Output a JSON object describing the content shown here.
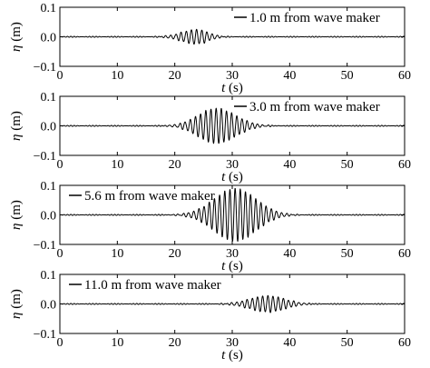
{
  "chart_data": [
    {
      "type": "line",
      "legend": "1.0 m from wave maker",
      "legend_position": "top-right",
      "xlabel_var": "t",
      "xlabel_unit": " (s)",
      "ylabel_var": "η",
      "ylabel_unit": " (m)",
      "xlim": [
        0,
        60
      ],
      "ylim": [
        -0.1,
        0.1
      ],
      "xticks": [
        "0",
        "10",
        "20",
        "30",
        "40",
        "50",
        "60"
      ],
      "yticks": [
        "0.1",
        "0.0",
        "−0.1"
      ],
      "packet": {
        "peak_time": 23.8,
        "peak_amplitude": 0.025,
        "period": 0.9,
        "onset": 17,
        "end": 29
      }
    },
    {
      "type": "line",
      "legend": "3.0 m from wave maker",
      "legend_position": "top-right",
      "xlabel_var": "t",
      "xlabel_unit": " (s)",
      "ylabel_var": "η",
      "ylabel_unit": " (m)",
      "xlim": [
        0,
        60
      ],
      "ylim": [
        -0.1,
        0.1
      ],
      "xticks": [
        "0",
        "10",
        "20",
        "30",
        "40",
        "50",
        "60"
      ],
      "yticks": [
        "0.1",
        "0.0",
        "−0.1"
      ],
      "packet": {
        "peak_time": 27.2,
        "peak_amplitude": 0.06,
        "period": 0.9,
        "onset": 19,
        "end": 36
      }
    },
    {
      "type": "line",
      "legend": "5.6 m from wave maker",
      "legend_position": "top-left",
      "xlabel_var": "t",
      "xlabel_unit": " (s)",
      "ylabel_var": "η",
      "ylabel_unit": " (m)",
      "xlim": [
        0,
        60
      ],
      "ylim": [
        -0.1,
        0.1
      ],
      "xticks": [
        "0",
        "10",
        "20",
        "30",
        "40",
        "50",
        "60"
      ],
      "yticks": [
        "0.1",
        "0.0",
        "−0.1"
      ],
      "packet": {
        "peak_time": 30.5,
        "peak_amplitude": 0.09,
        "period": 0.9,
        "onset": 21,
        "end": 40
      }
    },
    {
      "type": "line",
      "legend": "11.0 m from wave maker",
      "legend_position": "top-left",
      "xlabel_var": "t",
      "xlabel_unit": " (s)",
      "ylabel_var": "η",
      "ylabel_unit": " (m)",
      "xlim": [
        0,
        60
      ],
      "ylim": [
        -0.1,
        0.1
      ],
      "xticks": [
        "0",
        "10",
        "20",
        "30",
        "40",
        "50",
        "60"
      ],
      "yticks": [
        "0.1",
        "0.0",
        "−0.1"
      ],
      "packet": {
        "peak_time": 36.2,
        "peak_amplitude": 0.028,
        "period": 0.9,
        "onset": 28,
        "end": 44
      }
    }
  ]
}
